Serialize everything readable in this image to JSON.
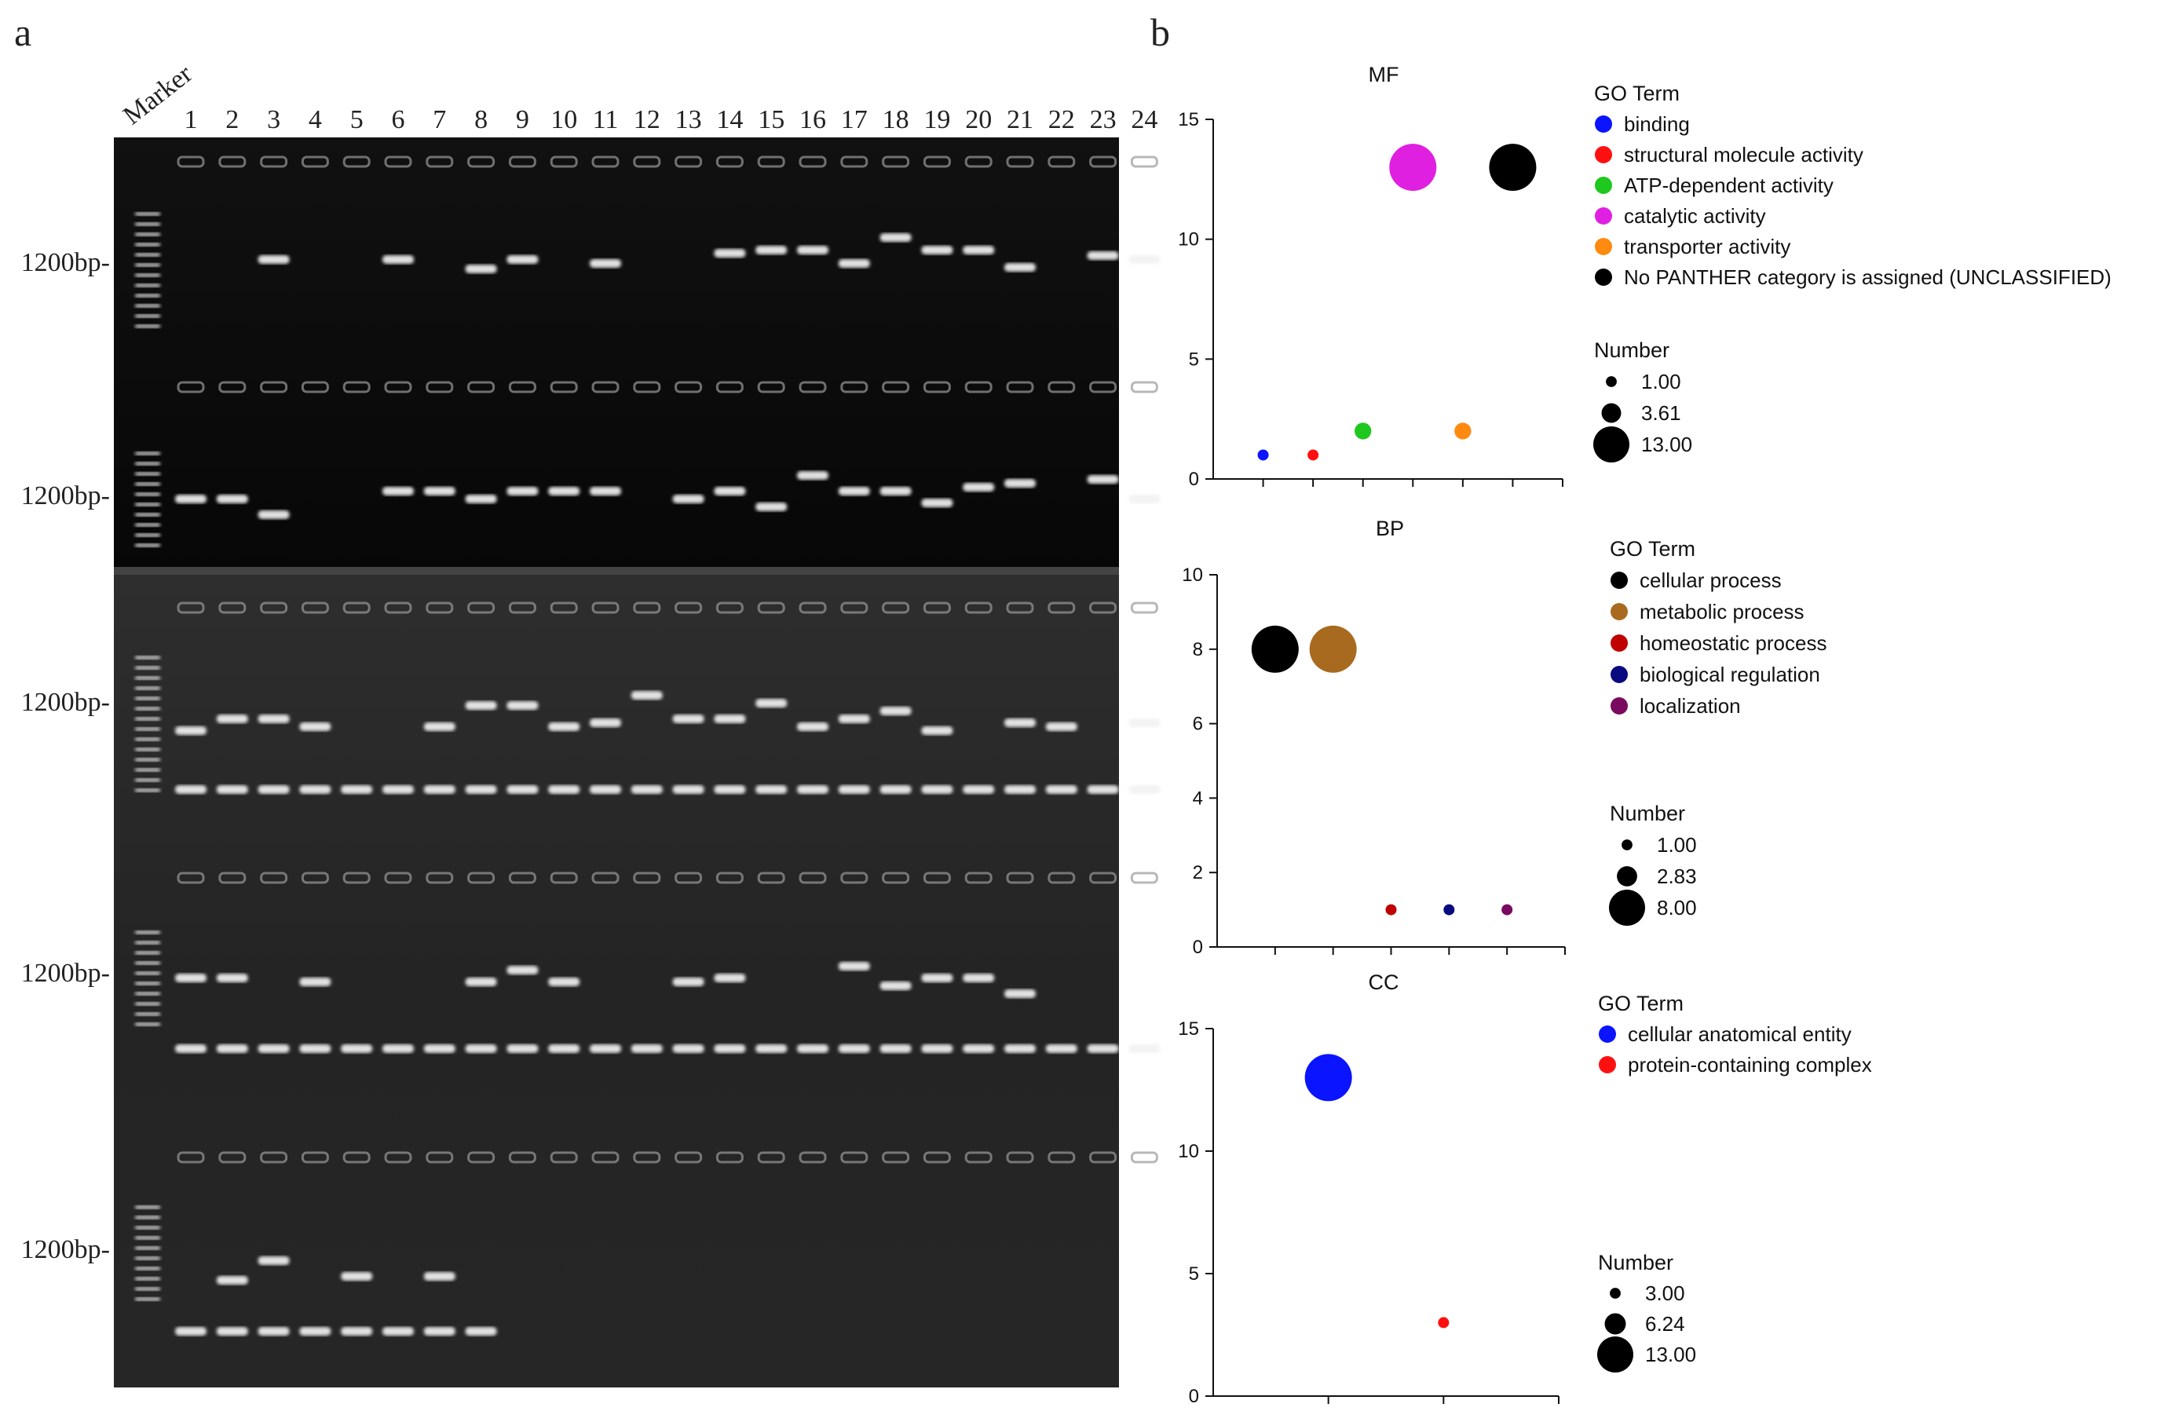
{
  "panel_a": {
    "label": "a",
    "marker_label": "Marker",
    "lanes": [
      "1",
      "2",
      "3",
      "4",
      "5",
      "6",
      "7",
      "8",
      "9",
      "10",
      "11",
      "12",
      "13",
      "14",
      "15",
      "16",
      "17",
      "18",
      "19",
      "20",
      "21",
      "22",
      "23",
      "24"
    ],
    "size_label": "1200bp-"
  },
  "panel_b": {
    "label": "b"
  },
  "chart_data": [
    {
      "type": "scatter",
      "title": "MF",
      "xlabel": "",
      "ylabel": "",
      "ylim": [
        0,
        15
      ],
      "yticks": [
        "0",
        "5",
        "10",
        "15"
      ],
      "legend_title": "GO Term",
      "size_legend_title": "Number",
      "size_legend": [
        "1.00",
        "3.61",
        "13.00"
      ],
      "size_legend_values": [
        1,
        3.61,
        13
      ],
      "series": [
        {
          "name": "binding",
          "color": "#0a14ff",
          "x": 1,
          "y": 1
        },
        {
          "name": "structural molecule activity",
          "color": "#ff1010",
          "x": 2,
          "y": 1
        },
        {
          "name": "ATP-dependent activity",
          "color": "#1fc81f",
          "x": 3,
          "y": 2
        },
        {
          "name": "catalytic activity",
          "color": "#e020e0",
          "x": 4,
          "y": 13
        },
        {
          "name": "transporter activity",
          "color": "#ff8a10",
          "x": 5,
          "y": 2
        },
        {
          "name": "No PANTHER category is assigned (UNCLASSIFIED)",
          "color": "#000000",
          "x": 6,
          "y": 13
        }
      ]
    },
    {
      "type": "scatter",
      "title": "BP",
      "xlabel": "",
      "ylabel": "",
      "ylim": [
        0,
        10
      ],
      "yticks": [
        "0",
        "2",
        "4",
        "6",
        "8",
        "10"
      ],
      "legend_title": "GO Term",
      "size_legend_title": "Number",
      "size_legend": [
        "1.00",
        "2.83",
        "8.00"
      ],
      "size_legend_values": [
        1,
        2.83,
        8
      ],
      "series": [
        {
          "name": "cellular process",
          "color": "#000000",
          "x": 1,
          "y": 8
        },
        {
          "name": "metabolic process",
          "color": "#a86a1e",
          "x": 2,
          "y": 8
        },
        {
          "name": "homeostatic process",
          "color": "#c00000",
          "x": 3,
          "y": 1
        },
        {
          "name": "biological regulation",
          "color": "#0a0a80",
          "x": 4,
          "y": 1
        },
        {
          "name": "localization",
          "color": "#7a0a60",
          "x": 5,
          "y": 1
        }
      ]
    },
    {
      "type": "scatter",
      "title": "CC",
      "xlabel": "",
      "ylabel": "",
      "ylim": [
        0,
        15
      ],
      "yticks": [
        "0",
        "5",
        "10",
        "15"
      ],
      "legend_title": "GO Term",
      "size_legend_title": "Number",
      "size_legend": [
        "3.00",
        "6.24",
        "13.00"
      ],
      "size_legend_values": [
        3,
        6.24,
        13
      ],
      "series": [
        {
          "name": "cellular anatomical entity",
          "color": "#0a14ff",
          "x": 1,
          "y": 13
        },
        {
          "name": "protein-containing complex",
          "color": "#ff1010",
          "x": 2,
          "y": 3
        }
      ]
    }
  ]
}
